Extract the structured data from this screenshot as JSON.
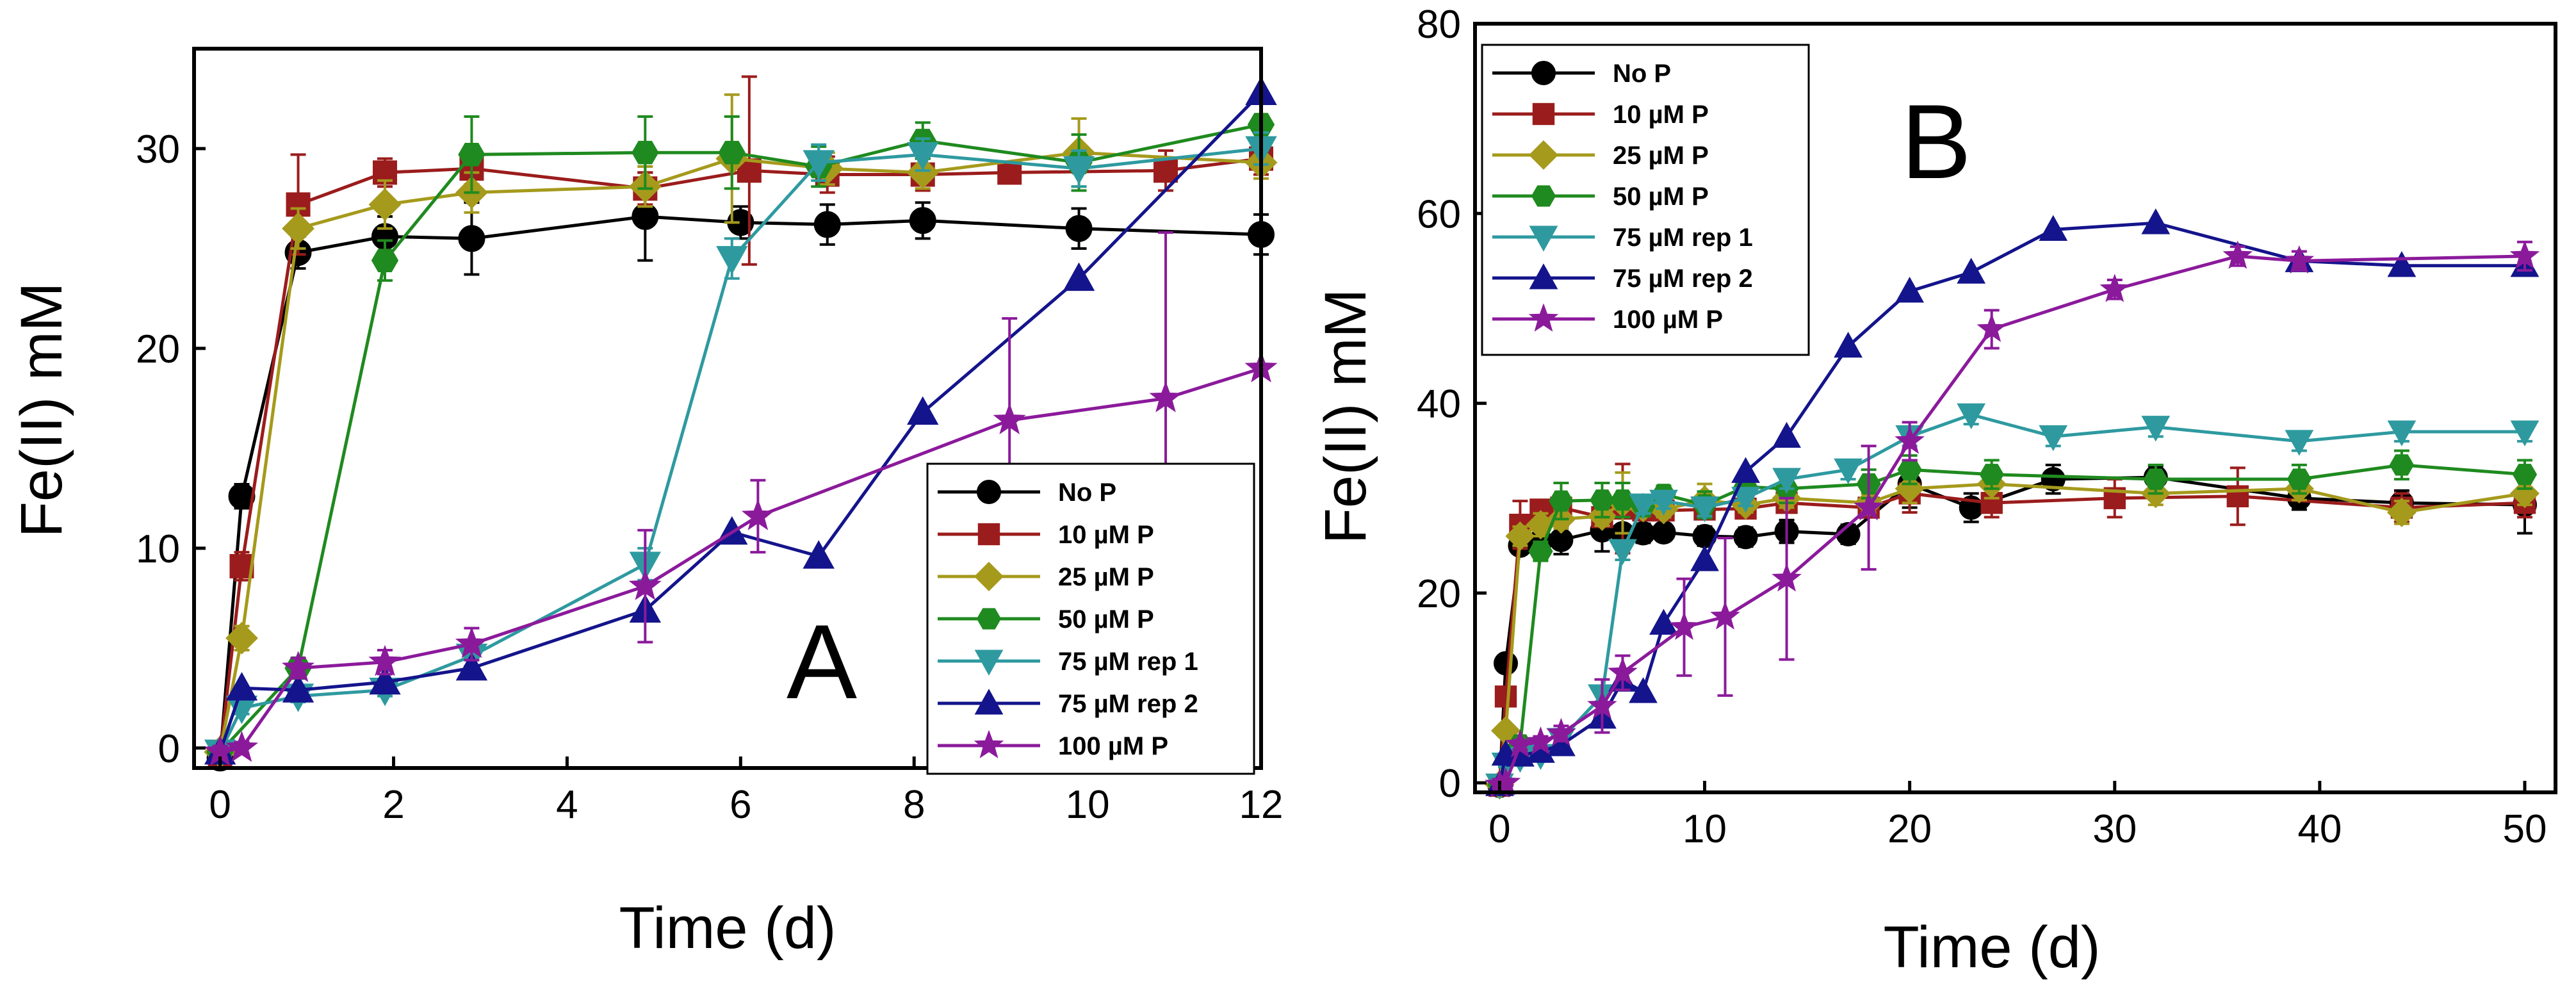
{
  "colors": {
    "no_p": "#000000",
    "p10": "#9b1c1c",
    "p25": "#a59a1c",
    "p50": "#1f8a1f",
    "rep1": "#2e9aa0",
    "rep2": "#14148c",
    "p100": "#8b1a9b"
  },
  "chart_data": [
    {
      "type": "line",
      "panel_label": "A",
      "xlabel": "Time (d)",
      "ylabel": "Fe(II) mM",
      "xlim": [
        -0.3,
        12
      ],
      "ylim": [
        -1,
        35
      ],
      "xticks": [
        0,
        2,
        4,
        6,
        8,
        10,
        12
      ],
      "yticks": [
        0,
        10,
        20,
        30
      ],
      "xtick_labels": [
        "0",
        "2",
        "4",
        "6",
        "8",
        "10",
        "12"
      ],
      "ytick_labels": [
        "0",
        "10",
        "20",
        "30"
      ],
      "legend_position": "lower-right",
      "series": [
        {
          "name": "No P",
          "color_key": "no_p",
          "marker": "circle",
          "x": [
            0,
            0.25,
            0.9,
            1.9,
            2.9,
            4.9,
            6,
            7,
            8.1,
            9.9,
            12
          ],
          "y": [
            -0.5,
            12.6,
            24.8,
            25.6,
            25.5,
            26.6,
            26.3,
            26.2,
            26.4,
            26.0,
            25.7
          ],
          "err": [
            0.5,
            0.6,
            0.8,
            1.0,
            1.8,
            2.2,
            0.8,
            1.0,
            0.9,
            1.0,
            1.0
          ]
        },
        {
          "name": "10 µM P",
          "color_key": "p10",
          "marker": "square",
          "x": [
            0,
            0.25,
            0.9,
            1.9,
            2.9,
            4.9,
            6.1,
            7,
            8.1,
            9.1,
            10.9,
            12
          ],
          "y": [
            -0.3,
            9.1,
            27.2,
            28.8,
            29.0,
            28.0,
            28.9,
            28.7,
            28.7,
            28.8,
            28.9,
            29.5
          ],
          "err": [
            0.5,
            0.7,
            2.5,
            0.7,
            0.8,
            0.8,
            4.7,
            0.9,
            0.8,
            0.5,
            1.0,
            0.8
          ]
        },
        {
          "name": "25 µM P",
          "color_key": "p25",
          "marker": "diamond",
          "x": [
            0,
            0.25,
            0.9,
            1.9,
            2.9,
            4.9,
            5.9,
            7,
            8.1,
            9.9,
            12
          ],
          "y": [
            -0.2,
            5.5,
            26.0,
            27.2,
            27.8,
            28.1,
            29.5,
            29.0,
            28.8,
            29.8,
            29.3
          ],
          "err": [
            0.4,
            0.6,
            1.0,
            1.2,
            1.0,
            1.0,
            3.2,
            0.8,
            0.8,
            1.7,
            0.8
          ]
        },
        {
          "name": "50 µM P",
          "color_key": "p50",
          "marker": "hexagon",
          "x": [
            0,
            0.9,
            1.9,
            2.9,
            4.9,
            5.9,
            6.9,
            8.1,
            9.9,
            12
          ],
          "y": [
            -0.2,
            4.0,
            24.4,
            29.7,
            29.8,
            29.8,
            29.1,
            30.4,
            29.3,
            31.2
          ],
          "err": [
            0.4,
            0.5,
            1.0,
            1.9,
            1.8,
            1.8,
            1.0,
            0.9,
            1.4,
            1.3
          ]
        },
        {
          "name": "75 µM rep 1",
          "color_key": "rep1",
          "marker": "triangle-down",
          "x": [
            0,
            0.25,
            0.9,
            1.9,
            2.9,
            4.9,
            5.9,
            6.9,
            8.1,
            9.9,
            12
          ],
          "y": [
            -0.2,
            2.0,
            2.6,
            2.9,
            4.6,
            9.2,
            24.5,
            29.3,
            29.7,
            29.0,
            30.0
          ],
          "err": [
            0.3,
            0.3,
            0.3,
            0.3,
            0.5,
            0.8,
            1.0,
            0.9,
            0.8,
            0.9,
            0.8
          ]
        },
        {
          "name": "75 µM rep 2",
          "color_key": "rep2",
          "marker": "triangle-up",
          "x": [
            0,
            0.25,
            0.9,
            1.9,
            2.9,
            4.9,
            5.9,
            6.9,
            8.1,
            9.9,
            12
          ],
          "y": [
            -0.2,
            3.0,
            2.9,
            3.3,
            4.0,
            6.9,
            10.8,
            9.6,
            16.8,
            23.5,
            32.8
          ],
          "err": [
            0,
            0,
            0,
            0,
            0,
            0,
            0,
            0,
            0,
            0,
            0
          ]
        },
        {
          "name": "100 µM P",
          "color_key": "p100",
          "marker": "star",
          "x": [
            0,
            0.25,
            0.9,
            1.9,
            2.9,
            4.9,
            6.2,
            9.1,
            10.9,
            12
          ],
          "y": [
            -0.2,
            0.0,
            4.0,
            4.3,
            5.2,
            8.1,
            11.6,
            16.4,
            17.5,
            19.0
          ],
          "err": [
            0.3,
            0.3,
            0.5,
            0.6,
            0.8,
            2.8,
            1.8,
            5.1,
            8.3,
            0
          ]
        }
      ]
    },
    {
      "type": "line",
      "panel_label": "B",
      "xlabel": "Time (d)",
      "ylabel": "Fe(II) mM",
      "xlim": [
        -1.2,
        51.5
      ],
      "ylim": [
        -1,
        80
      ],
      "xticks": [
        0,
        10,
        20,
        30,
        40,
        50
      ],
      "yticks": [
        0,
        20,
        40,
        60,
        80
      ],
      "xtick_labels": [
        "0",
        "10",
        "20",
        "30",
        "40",
        "50"
      ],
      "ytick_labels": [
        "0",
        "20",
        "40",
        "60",
        "80"
      ],
      "legend_position": "top-left",
      "series": [
        {
          "name": "No P",
          "color_key": "no_p",
          "marker": "circle",
          "x": [
            0,
            0.3,
            1,
            2,
            3,
            5,
            6,
            7,
            8,
            10,
            12,
            14,
            17,
            20,
            23,
            27,
            32,
            39,
            44,
            50
          ],
          "y": [
            -0.3,
            12.6,
            25,
            25.5,
            25.6,
            26.6,
            26.3,
            26.3,
            26.4,
            26.0,
            25.9,
            26.5,
            26.2,
            31.5,
            29.0,
            32.0,
            32.2,
            30.0,
            29.5,
            29.3
          ],
          "err": [
            0.5,
            0.6,
            0.8,
            1.0,
            1.5,
            2.2,
            0.8,
            1.0,
            0.9,
            1.0,
            1.0,
            1.2,
            1.0,
            2.5,
            1.5,
            1.5,
            1.2,
            1.2,
            1.3,
            3.0
          ]
        },
        {
          "name": "10 µM P",
          "color_key": "p10",
          "marker": "square",
          "x": [
            0,
            0.3,
            1,
            2,
            3,
            5,
            6,
            7,
            8,
            10,
            12,
            14,
            18,
            20,
            24,
            30,
            36,
            44,
            50
          ],
          "y": [
            -0.3,
            9.1,
            27.2,
            28.8,
            29.0,
            28.0,
            28.9,
            28.7,
            28.7,
            28.8,
            28.9,
            29.5,
            29.0,
            30.5,
            29.5,
            30.0,
            30.2,
            29.0,
            29.5
          ],
          "err": [
            0.5,
            0.7,
            2.5,
            0.7,
            0.8,
            0.8,
            4.7,
            0.9,
            0.8,
            0.5,
            1.0,
            0.8,
            1.0,
            2.0,
            1.5,
            2.0,
            3.0,
            1.5,
            1.5
          ]
        },
        {
          "name": "25 µM P",
          "color_key": "p25",
          "marker": "diamond",
          "x": [
            0,
            0.3,
            1,
            2,
            3,
            5,
            6,
            7,
            8,
            10,
            12,
            14,
            18,
            20,
            24,
            32,
            39,
            44,
            50
          ],
          "y": [
            -0.2,
            5.5,
            26.0,
            27.2,
            27.8,
            28.1,
            29.5,
            29.0,
            28.8,
            29.8,
            29.3,
            30.0,
            29.5,
            31.0,
            31.5,
            30.5,
            31.0,
            28.5,
            30.5
          ],
          "err": [
            0.4,
            0.6,
            1.0,
            1.2,
            1.0,
            1.0,
            3.2,
            0.8,
            0.8,
            1.7,
            0.8,
            1.0,
            1.0,
            1.5,
            1.5,
            1.2,
            1.2,
            1.2,
            1.2
          ]
        },
        {
          "name": "50 µM P",
          "color_key": "p50",
          "marker": "hexagon",
          "x": [
            0,
            1,
            2,
            3,
            5,
            6,
            7,
            8,
            10,
            12,
            14,
            18,
            20,
            24,
            32,
            39,
            44,
            50
          ],
          "y": [
            -0.2,
            4.0,
            24.4,
            29.7,
            29.8,
            29.8,
            29.1,
            30.4,
            29.3,
            31.2,
            31.0,
            31.5,
            33.0,
            32.5,
            32.0,
            32.0,
            33.5,
            32.5
          ],
          "err": [
            0.4,
            0.5,
            1.0,
            1.9,
            1.8,
            1.8,
            1.0,
            0.9,
            1.4,
            1.3,
            1.5,
            1.5,
            1.5,
            1.5,
            1.5,
            1.5,
            1.5,
            1.5
          ]
        },
        {
          "name": "75 µM rep 1",
          "color_key": "rep1",
          "marker": "triangle-down",
          "x": [
            0,
            0.3,
            1,
            2,
            3,
            5,
            6,
            7,
            8,
            10,
            12,
            14,
            17,
            20,
            23,
            27,
            32,
            39,
            44,
            50
          ],
          "y": [
            -0.2,
            2.0,
            2.6,
            2.9,
            4.6,
            9.2,
            24.5,
            29.3,
            29.7,
            29.0,
            30.0,
            32.0,
            33.0,
            36.5,
            38.8,
            36.5,
            37.5,
            36.0,
            37.0,
            37.0
          ],
          "err": [
            0.3,
            0.3,
            0.3,
            0.3,
            0.5,
            0.8,
            1.0,
            0.9,
            0.8,
            0.9,
            0.8,
            1.0,
            1.0,
            1.0,
            1.0,
            1.0,
            1.0,
            1.0,
            1.0,
            1.0
          ]
        },
        {
          "name": "75 µM rep 2",
          "color_key": "rep2",
          "marker": "triangle-up",
          "x": [
            0,
            0.3,
            1,
            2,
            3,
            5,
            6,
            7,
            8,
            10,
            12,
            14,
            17,
            20,
            23,
            27,
            32,
            39,
            44,
            50
          ],
          "y": [
            -0.2,
            3.0,
            2.9,
            3.3,
            4.0,
            6.9,
            10.8,
            9.6,
            16.8,
            23.5,
            32.8,
            36.5,
            46.0,
            51.8,
            53.8,
            58.3,
            59.0,
            55.0,
            54.5,
            54.5
          ],
          "err": [
            0,
            0,
            0,
            0,
            0,
            0,
            0,
            0,
            0,
            0,
            0,
            0,
            0,
            0,
            0,
            0,
            0,
            0,
            0,
            0
          ]
        },
        {
          "name": "100 µM P",
          "color_key": "p100",
          "marker": "star",
          "x": [
            0,
            0.3,
            1,
            2,
            3,
            5,
            6,
            9,
            11,
            14,
            18,
            20,
            24,
            30,
            36,
            39,
            50
          ],
          "y": [
            -0.2,
            0.0,
            4.0,
            4.3,
            5.2,
            8.1,
            11.6,
            16.4,
            17.5,
            21.5,
            29.0,
            36.0,
            47.8,
            52.0,
            55.5,
            55.0,
            55.5
          ],
          "err": [
            0.3,
            0.3,
            0.5,
            0.6,
            0.8,
            2.8,
            1.8,
            5.1,
            8.3,
            8.5,
            6.5,
            2.0,
            2.0,
            1.0,
            1.0,
            1.0,
            1.5
          ]
        }
      ]
    }
  ]
}
